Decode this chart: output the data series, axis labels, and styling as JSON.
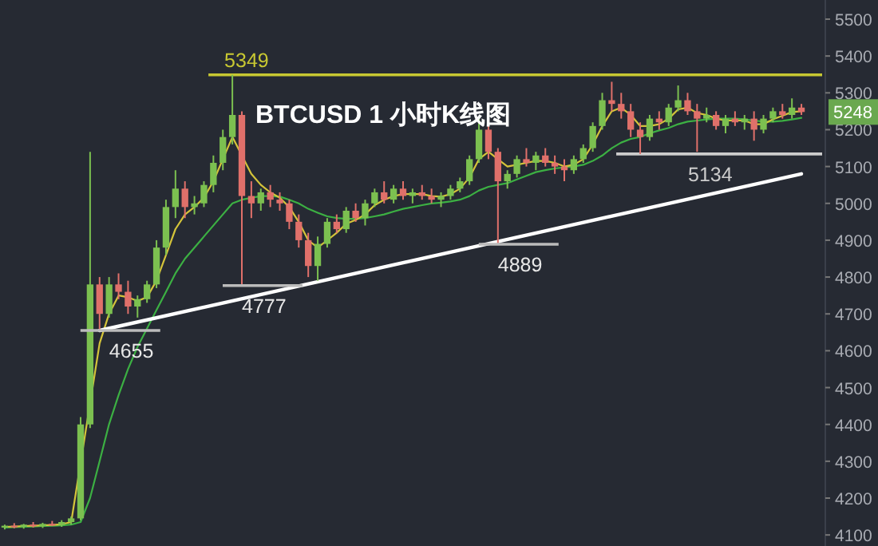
{
  "chart_data": {
    "type": "candlestick",
    "title": "BTCUSD 1 小时K线图",
    "categories": [
      null,
      null,
      null,
      null,
      null,
      null,
      null,
      null,
      null,
      null,
      null,
      null,
      null,
      null,
      null,
      null,
      null,
      null,
      null,
      null,
      null,
      null,
      null,
      null,
      null,
      null,
      null,
      null,
      null,
      null,
      null,
      null,
      null,
      null,
      null,
      null,
      null,
      null,
      null,
      null,
      null,
      null,
      null,
      null,
      null,
      null,
      null,
      null,
      null,
      null,
      null,
      null,
      null,
      null,
      null,
      null,
      null,
      null,
      null,
      null,
      null,
      null,
      null,
      null,
      null,
      null,
      null,
      null,
      null,
      null,
      null,
      null,
      null,
      null,
      null,
      null,
      null,
      null,
      null,
      null,
      null,
      null,
      null,
      null,
      null
    ],
    "ohlc": [
      [
        4120,
        4128,
        4115,
        4125
      ],
      [
        4125,
        4132,
        4118,
        4122
      ],
      [
        4122,
        4130,
        4117,
        4128
      ],
      [
        4128,
        4135,
        4120,
        4124
      ],
      [
        4124,
        4133,
        4119,
        4130
      ],
      [
        4130,
        4138,
        4124,
        4127
      ],
      [
        4127,
        4140,
        4122,
        4135
      ],
      [
        4135,
        4150,
        4128,
        4145
      ],
      [
        4145,
        4420,
        4140,
        4400
      ],
      [
        4400,
        5140,
        4390,
        4780
      ],
      [
        4780,
        4800,
        4655,
        4700
      ],
      [
        4700,
        4800,
        4690,
        4780
      ],
      [
        4780,
        4810,
        4740,
        4760
      ],
      [
        4760,
        4790,
        4700,
        4720
      ],
      [
        4720,
        4750,
        4690,
        4740
      ],
      [
        4740,
        4790,
        4730,
        4780
      ],
      [
        4780,
        4900,
        4770,
        4880
      ],
      [
        4880,
        5010,
        4860,
        4990
      ],
      [
        4990,
        5090,
        4960,
        5040
      ],
      [
        5040,
        5060,
        4960,
        4990
      ],
      [
        4990,
        5020,
        4970,
        5000
      ],
      [
        5000,
        5060,
        4990,
        5050
      ],
      [
        5050,
        5130,
        5030,
        5110
      ],
      [
        5110,
        5200,
        5090,
        5180
      ],
      [
        5180,
        5349,
        5160,
        5240
      ],
      [
        5240,
        5250,
        4777,
        5020
      ],
      [
        5020,
        5060,
        4960,
        5000
      ],
      [
        5000,
        5040,
        4980,
        5030
      ],
      [
        5030,
        5050,
        4990,
        5010
      ],
      [
        5010,
        5030,
        4980,
        5000
      ],
      [
        5000,
        5010,
        4930,
        4950
      ],
      [
        4950,
        4970,
        4880,
        4900
      ],
      [
        4900,
        4920,
        4800,
        4830
      ],
      [
        4830,
        4910,
        4790,
        4890
      ],
      [
        4890,
        4960,
        4880,
        4950
      ],
      [
        4950,
        4970,
        4920,
        4930
      ],
      [
        4930,
        4990,
        4920,
        4980
      ],
      [
        4980,
        5000,
        4950,
        4960
      ],
      [
        4960,
        5010,
        4940,
        5000
      ],
      [
        5000,
        5040,
        4990,
        5030
      ],
      [
        5030,
        5060,
        5000,
        5010
      ],
      [
        5010,
        5050,
        5000,
        5040
      ],
      [
        5040,
        5060,
        5010,
        5020
      ],
      [
        5020,
        5040,
        5000,
        5030
      ],
      [
        5030,
        5050,
        5010,
        5020
      ],
      [
        5020,
        5040,
        5000,
        5010
      ],
      [
        5010,
        5030,
        4990,
        5020
      ],
      [
        5020,
        5050,
        5010,
        5040
      ],
      [
        5040,
        5070,
        5030,
        5060
      ],
      [
        5060,
        5130,
        5050,
        5120
      ],
      [
        5120,
        5230,
        5110,
        5200
      ],
      [
        5200,
        5220,
        5120,
        5140
      ],
      [
        5140,
        5150,
        4889,
        5060
      ],
      [
        5060,
        5090,
        5040,
        5080
      ],
      [
        5080,
        5130,
        5070,
        5120
      ],
      [
        5120,
        5150,
        5100,
        5110
      ],
      [
        5110,
        5140,
        5090,
        5130
      ],
      [
        5130,
        5150,
        5100,
        5110
      ],
      [
        5110,
        5130,
        5080,
        5100
      ],
      [
        5100,
        5120,
        5060,
        5090
      ],
      [
        5090,
        5130,
        5080,
        5120
      ],
      [
        5120,
        5160,
        5110,
        5150
      ],
      [
        5150,
        5220,
        5140,
        5210
      ],
      [
        5210,
        5300,
        5200,
        5280
      ],
      [
        5280,
        5330,
        5250,
        5270
      ],
      [
        5270,
        5300,
        5230,
        5250
      ],
      [
        5250,
        5270,
        5180,
        5200
      ],
      [
        5200,
        5220,
        5134,
        5180
      ],
      [
        5180,
        5240,
        5170,
        5230
      ],
      [
        5230,
        5250,
        5200,
        5220
      ],
      [
        5220,
        5270,
        5210,
        5260
      ],
      [
        5260,
        5320,
        5250,
        5280
      ],
      [
        5280,
        5300,
        5240,
        5250
      ],
      [
        5250,
        5270,
        5140,
        5230
      ],
      [
        5230,
        5260,
        5220,
        5240
      ],
      [
        5240,
        5250,
        5200,
        5210
      ],
      [
        5210,
        5240,
        5190,
        5230
      ],
      [
        5230,
        5250,
        5210,
        5220
      ],
      [
        5220,
        5240,
        5200,
        5230
      ],
      [
        5230,
        5250,
        5170,
        5200
      ],
      [
        5200,
        5240,
        5190,
        5230
      ],
      [
        5230,
        5260,
        5220,
        5250
      ],
      [
        5250,
        5270,
        5230,
        5240
      ],
      [
        5240,
        5285,
        5230,
        5260
      ],
      [
        5260,
        5270,
        5240,
        5248
      ]
    ],
    "series": [
      {
        "type": "line",
        "color": "#3cb043",
        "values": [
          4120,
          4121,
          4122,
          4123,
          4124,
          4125,
          4126,
          4128,
          4135,
          4200,
          4300,
          4400,
          4480,
          4550,
          4610,
          4660,
          4710,
          4760,
          4810,
          4850,
          4880,
          4910,
          4940,
          4970,
          5000,
          5010,
          5015,
          5020,
          5020,
          5018,
          5010,
          5000,
          4985,
          4975,
          4965,
          4960,
          4958,
          4958,
          4960,
          4965,
          4970,
          4978,
          4985,
          4990,
          4995,
          5000,
          5002,
          5005,
          5010,
          5020,
          5035,
          5045,
          5050,
          5055,
          5065,
          5075,
          5085,
          5090,
          5095,
          5098,
          5100,
          5105,
          5115,
          5130,
          5150,
          5165,
          5175,
          5180,
          5190,
          5198,
          5205,
          5215,
          5222,
          5225,
          5228,
          5230,
          5230,
          5230,
          5228,
          5225,
          5222,
          5222,
          5224,
          5228,
          5232
        ]
      },
      {
        "type": "line",
        "color": "#d4c43a",
        "values": [
          4122,
          4123,
          4124,
          4125,
          4126,
          4127,
          4129,
          4135,
          null,
          null,
          4620,
          4700,
          4750,
          4745,
          4735,
          4745,
          4790,
          4860,
          4930,
          4970,
          4990,
          5015,
          5060,
          5120,
          5180,
          5130,
          5080,
          5050,
          5030,
          5015,
          4990,
          4950,
          4900,
          4880,
          4900,
          4920,
          4945,
          4955,
          4970,
          4995,
          5010,
          5020,
          5025,
          5025,
          5025,
          5020,
          5018,
          5025,
          5040,
          5070,
          5120,
          5140,
          5120,
          5100,
          5105,
          5110,
          5115,
          5115,
          5110,
          5100,
          5105,
          5120,
          5160,
          5210,
          5250,
          5260,
          5240,
          5210,
          5210,
          5215,
          5230,
          5255,
          5260,
          5245,
          5240,
          5230,
          5225,
          5225,
          5225,
          5215,
          5215,
          5228,
          5238,
          5248,
          5250
        ]
      },
      {
        "type": "line",
        "color": "#ffffff",
        "values": [
          null,
          null,
          null,
          null,
          null,
          null,
          null,
          null,
          null,
          null,
          4655,
          null,
          null,
          null,
          null,
          null,
          null,
          null,
          null,
          null,
          null,
          null,
          null,
          null,
          null,
          null,
          null,
          null,
          null,
          null,
          null,
          null,
          null,
          null,
          null,
          null,
          null,
          null,
          null,
          null,
          null,
          null,
          null,
          null,
          null,
          null,
          null,
          null,
          null,
          null,
          null,
          null,
          null,
          null,
          null,
          null,
          null,
          null,
          null,
          null,
          null,
          null,
          null,
          null,
          null,
          null,
          null,
          null,
          null,
          null,
          null,
          null,
          null,
          null,
          null,
          null,
          null,
          null,
          null,
          null,
          null,
          null,
          null,
          null,
          5080
        ]
      }
    ],
    "ref_lines": [
      {
        "axis": "y",
        "value": 5349,
        "label": "5349",
        "color": "#c8c832"
      },
      {
        "axis": "y",
        "value": 5134,
        "label": "5134",
        "color": "#cccccc"
      }
    ],
    "annotations": [
      {
        "text": "4655",
        "y": 4655
      },
      {
        "text": "4777",
        "y": 4777
      },
      {
        "text": "4889",
        "y": 4889
      },
      "5248"
    ],
    "ylim": [
      4070,
      5552
    ],
    "yticks": [
      4100,
      4200,
      4300,
      4400,
      4500,
      4600,
      4700,
      4800,
      4900,
      5000,
      5100,
      5200,
      5300,
      5400,
      5500
    ],
    "tick_labels": "y",
    "grid": false
  }
}
